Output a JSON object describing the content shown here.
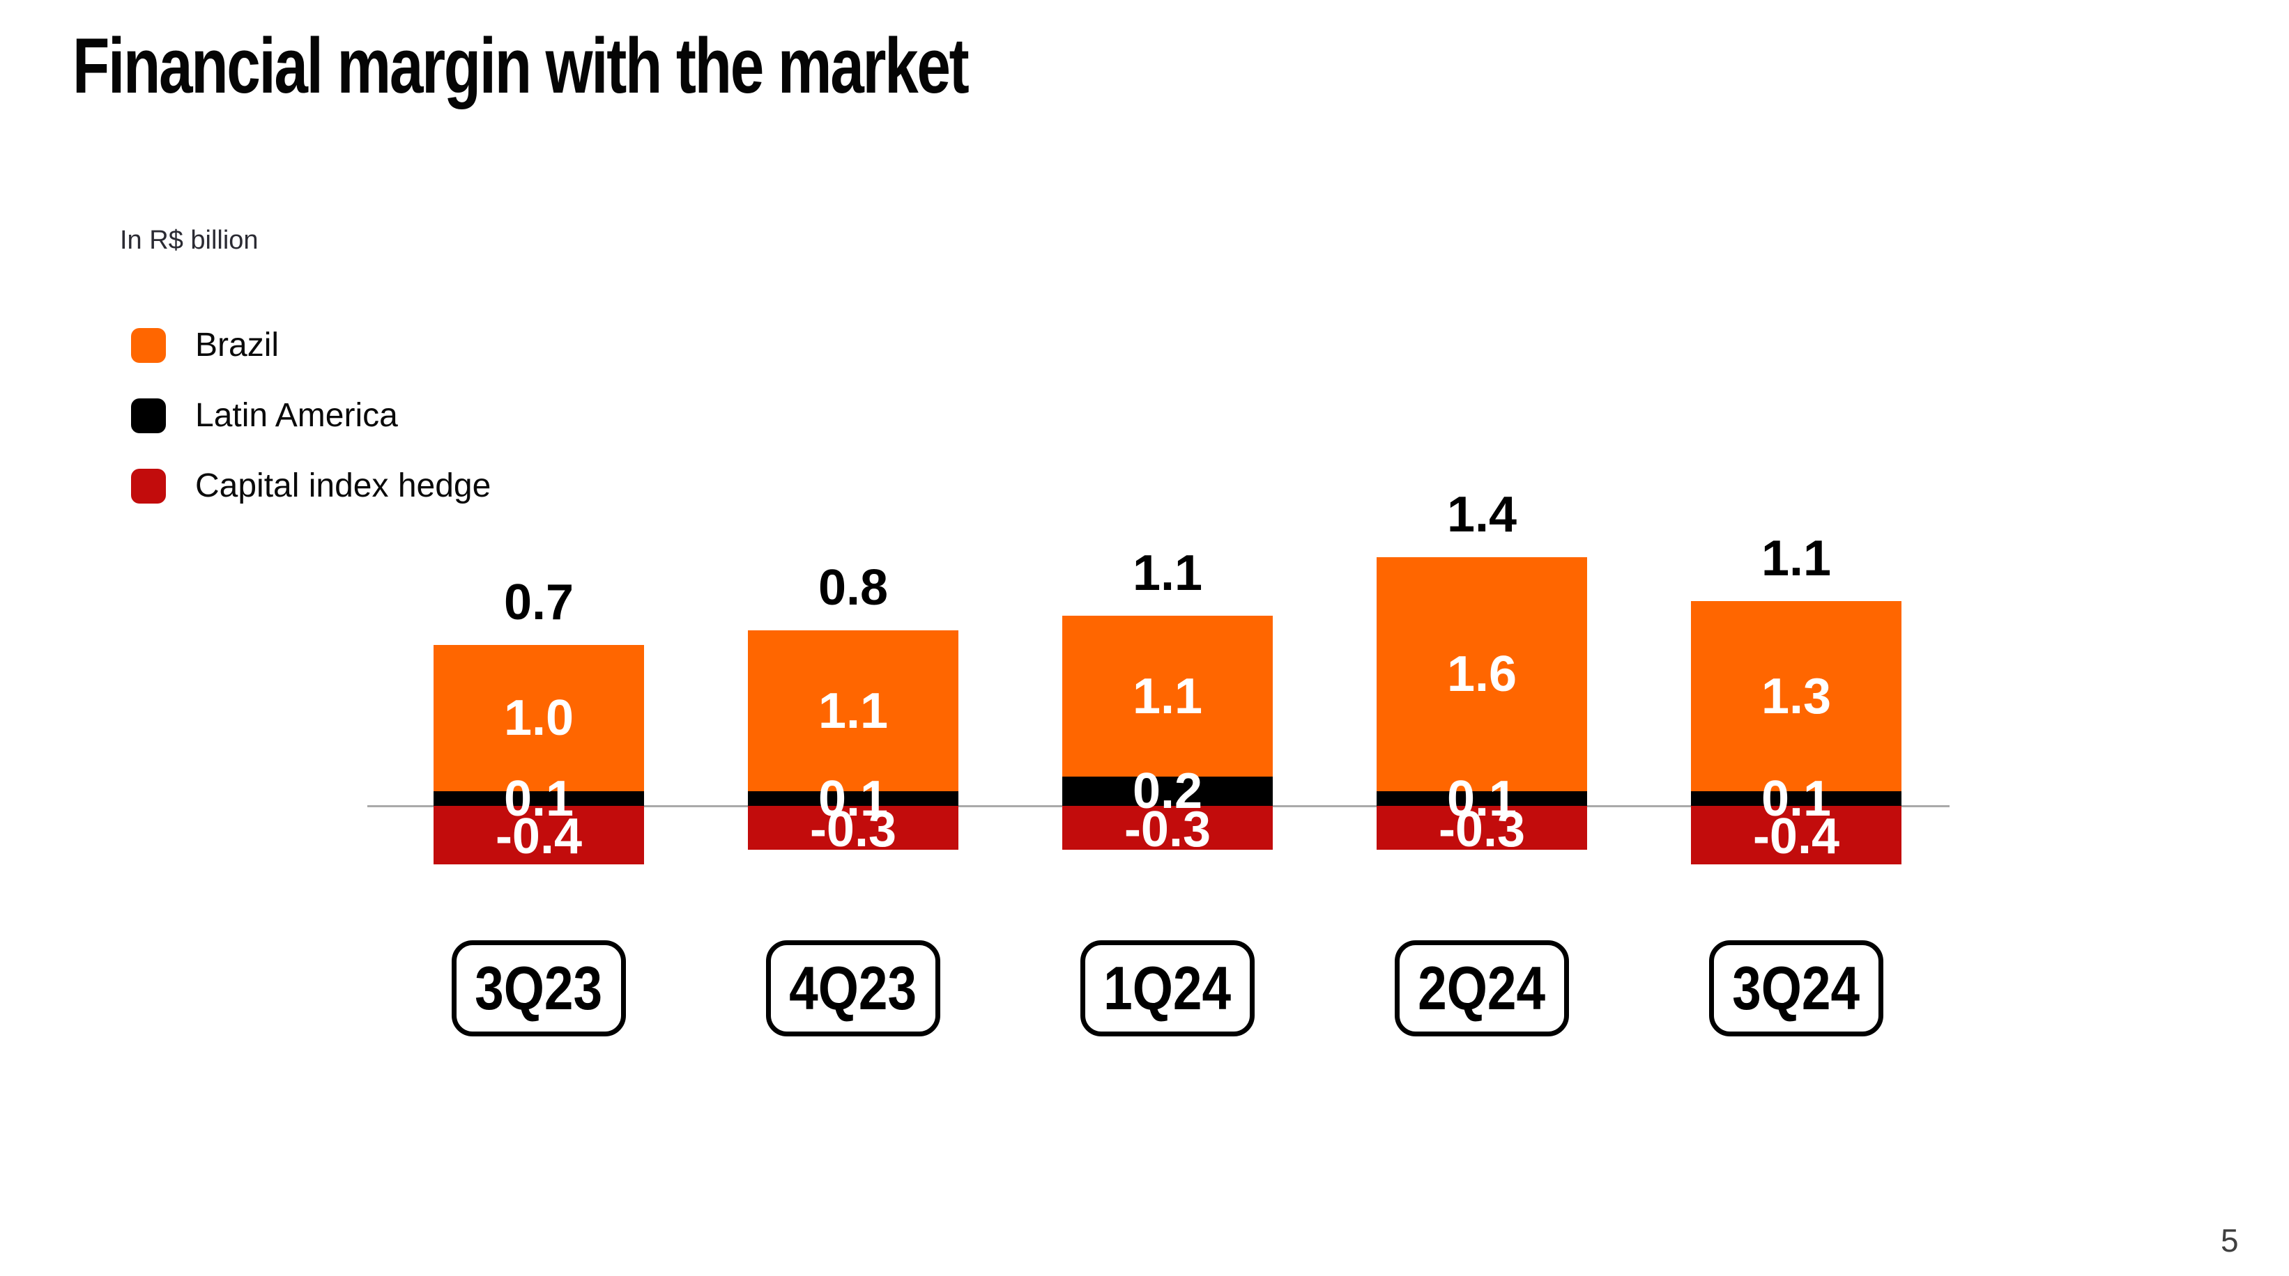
{
  "slide": {
    "title": "Financial margin with the market",
    "unit_note": "In R$ billion",
    "page_number": "5"
  },
  "legend": {
    "items": [
      {
        "label": "Brazil",
        "color": "#FF6600"
      },
      {
        "label": "Latin America",
        "color": "#000000"
      },
      {
        "label": "Capital index hedge",
        "color": "#C20C0C"
      }
    ]
  },
  "chart_data": {
    "type": "bar",
    "stacked": true,
    "title": "Financial margin with the market",
    "unit": "In R$ billion",
    "categories": [
      "3Q23",
      "4Q23",
      "1Q24",
      "2Q24",
      "3Q24"
    ],
    "series": [
      {
        "name": "Brazil",
        "color": "#FF6600",
        "values": [
          1.0,
          1.1,
          1.1,
          1.6,
          1.3
        ]
      },
      {
        "name": "Latin America",
        "color": "#000000",
        "values": [
          0.1,
          0.1,
          0.2,
          0.1,
          0.1
        ]
      },
      {
        "name": "Capital index hedge",
        "color": "#C20C0C",
        "values": [
          -0.4,
          -0.3,
          -0.3,
          -0.3,
          -0.4
        ]
      }
    ],
    "totals": [
      0.7,
      0.8,
      1.1,
      1.4,
      1.1
    ],
    "baseline": 0,
    "grid": false,
    "axis_line_color": "#A9A9A9",
    "legend_position": "top-left",
    "value_labels": "inside-and-total-above"
  }
}
